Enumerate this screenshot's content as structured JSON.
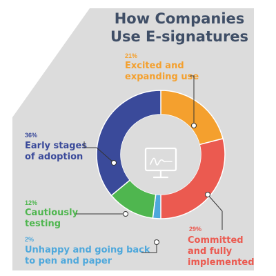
{
  "title": {
    "line1": "How Companies",
    "line2": "Use E-signatures"
  },
  "colors": {
    "background_panel": "#dcdcdc",
    "title": "#3f4e66",
    "center_icon": "#ffffff"
  },
  "center_icon": "e-signature-monitor-icon",
  "chart_data": {
    "type": "pie",
    "subtype": "donut",
    "title": "How Companies Use E-signatures",
    "unit": "%",
    "slices": [
      {
        "pct_label": "21%",
        "value": 21,
        "lines": [
          "Excited and",
          "expanding use"
        ],
        "color": "#f4a02e"
      },
      {
        "pct_label": "29%",
        "value": 29,
        "lines": [
          "Committed",
          "and fully",
          "implemented"
        ],
        "color": "#eb5a50"
      },
      {
        "pct_label": "2%",
        "value": 2,
        "lines": [
          "Unhappy and going back",
          "to pen and paper"
        ],
        "color": "#4ea8dc"
      },
      {
        "pct_label": "12%",
        "value": 12,
        "lines": [
          "Cautiously",
          "testing"
        ],
        "color": "#4fb64f"
      },
      {
        "pct_label": "36%",
        "value": 36,
        "lines": [
          "Early stages",
          "of adoption"
        ],
        "color": "#3a4a9a"
      }
    ]
  }
}
